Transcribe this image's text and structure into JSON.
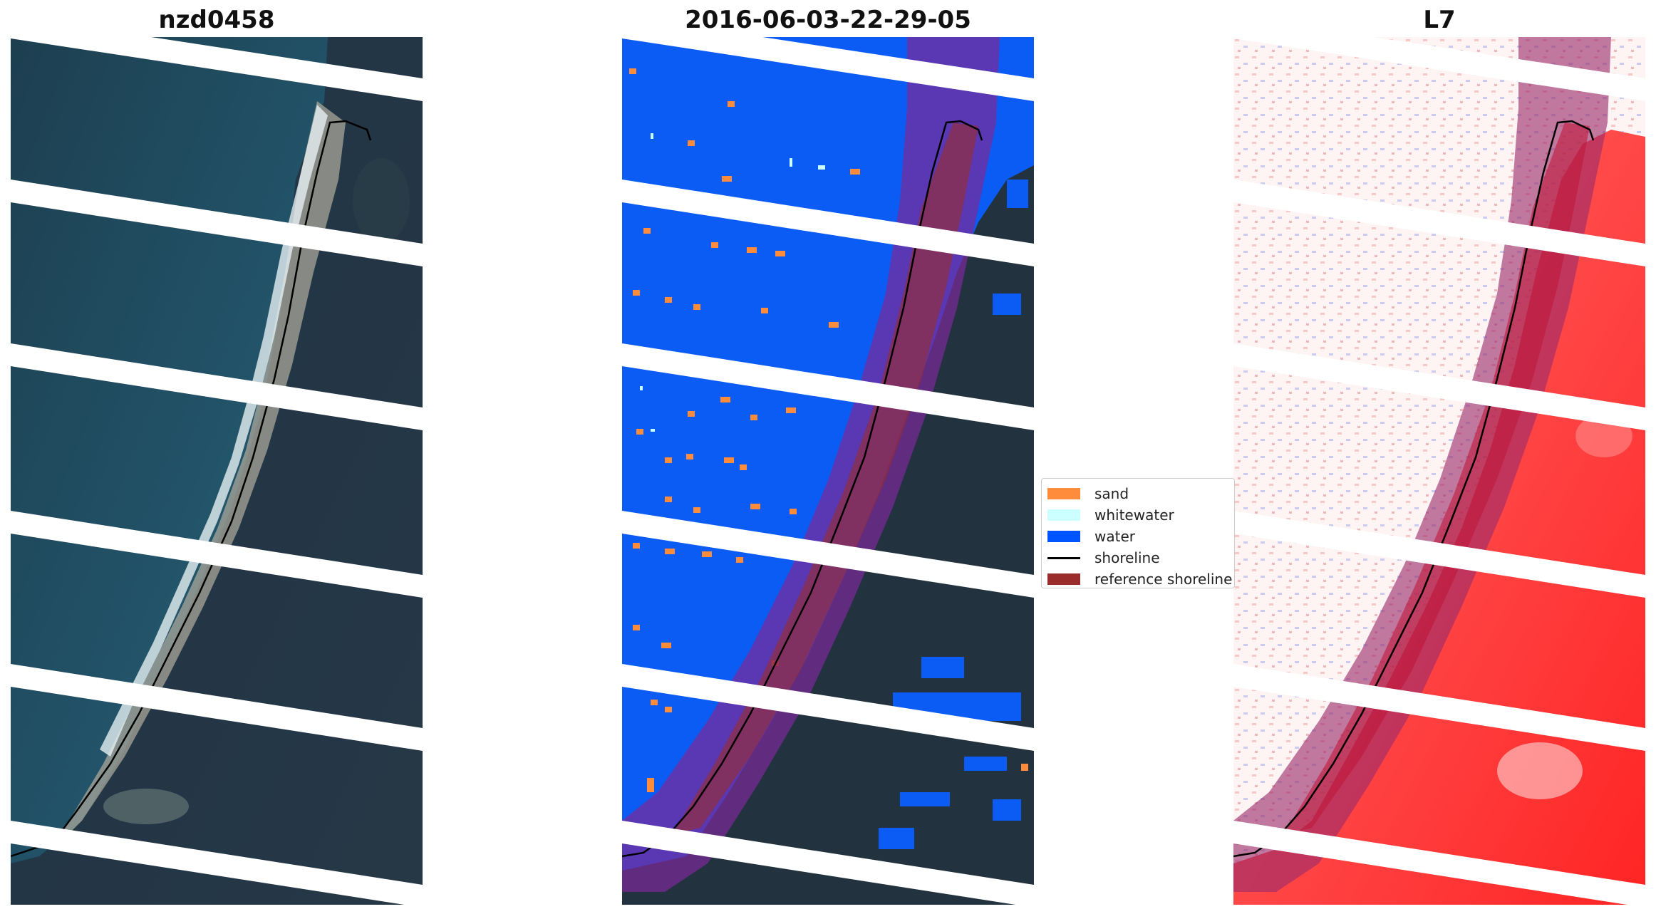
{
  "panels": [
    {
      "title": "nzd0458"
    },
    {
      "title": "2016-06-03-22-29-05"
    },
    {
      "title": "L7"
    }
  ],
  "legend": {
    "items": [
      {
        "label": "sand",
        "color": "#ff8c3a",
        "kind": "patch"
      },
      {
        "label": "whitewater",
        "color": "#ccffff",
        "kind": "patch"
      },
      {
        "label": "water",
        "color": "#0055ff",
        "kind": "patch"
      },
      {
        "label": "shoreline",
        "color": "#000000",
        "kind": "line"
      },
      {
        "label": "reference shoreline",
        "color": "#9b2c2c",
        "kind": "patch"
      }
    ]
  },
  "colors": {
    "sea": "#1f4a5c",
    "land": "#24333f",
    "beach": "#b9b3a8",
    "surf": "#e4eef0",
    "water_class": "#0a5cf5",
    "sand_class": "#ff8c3a",
    "buffer_overlay": "#7a2a9a",
    "index_positive": "#ff1a1a",
    "index_negative": "#2233cc"
  }
}
